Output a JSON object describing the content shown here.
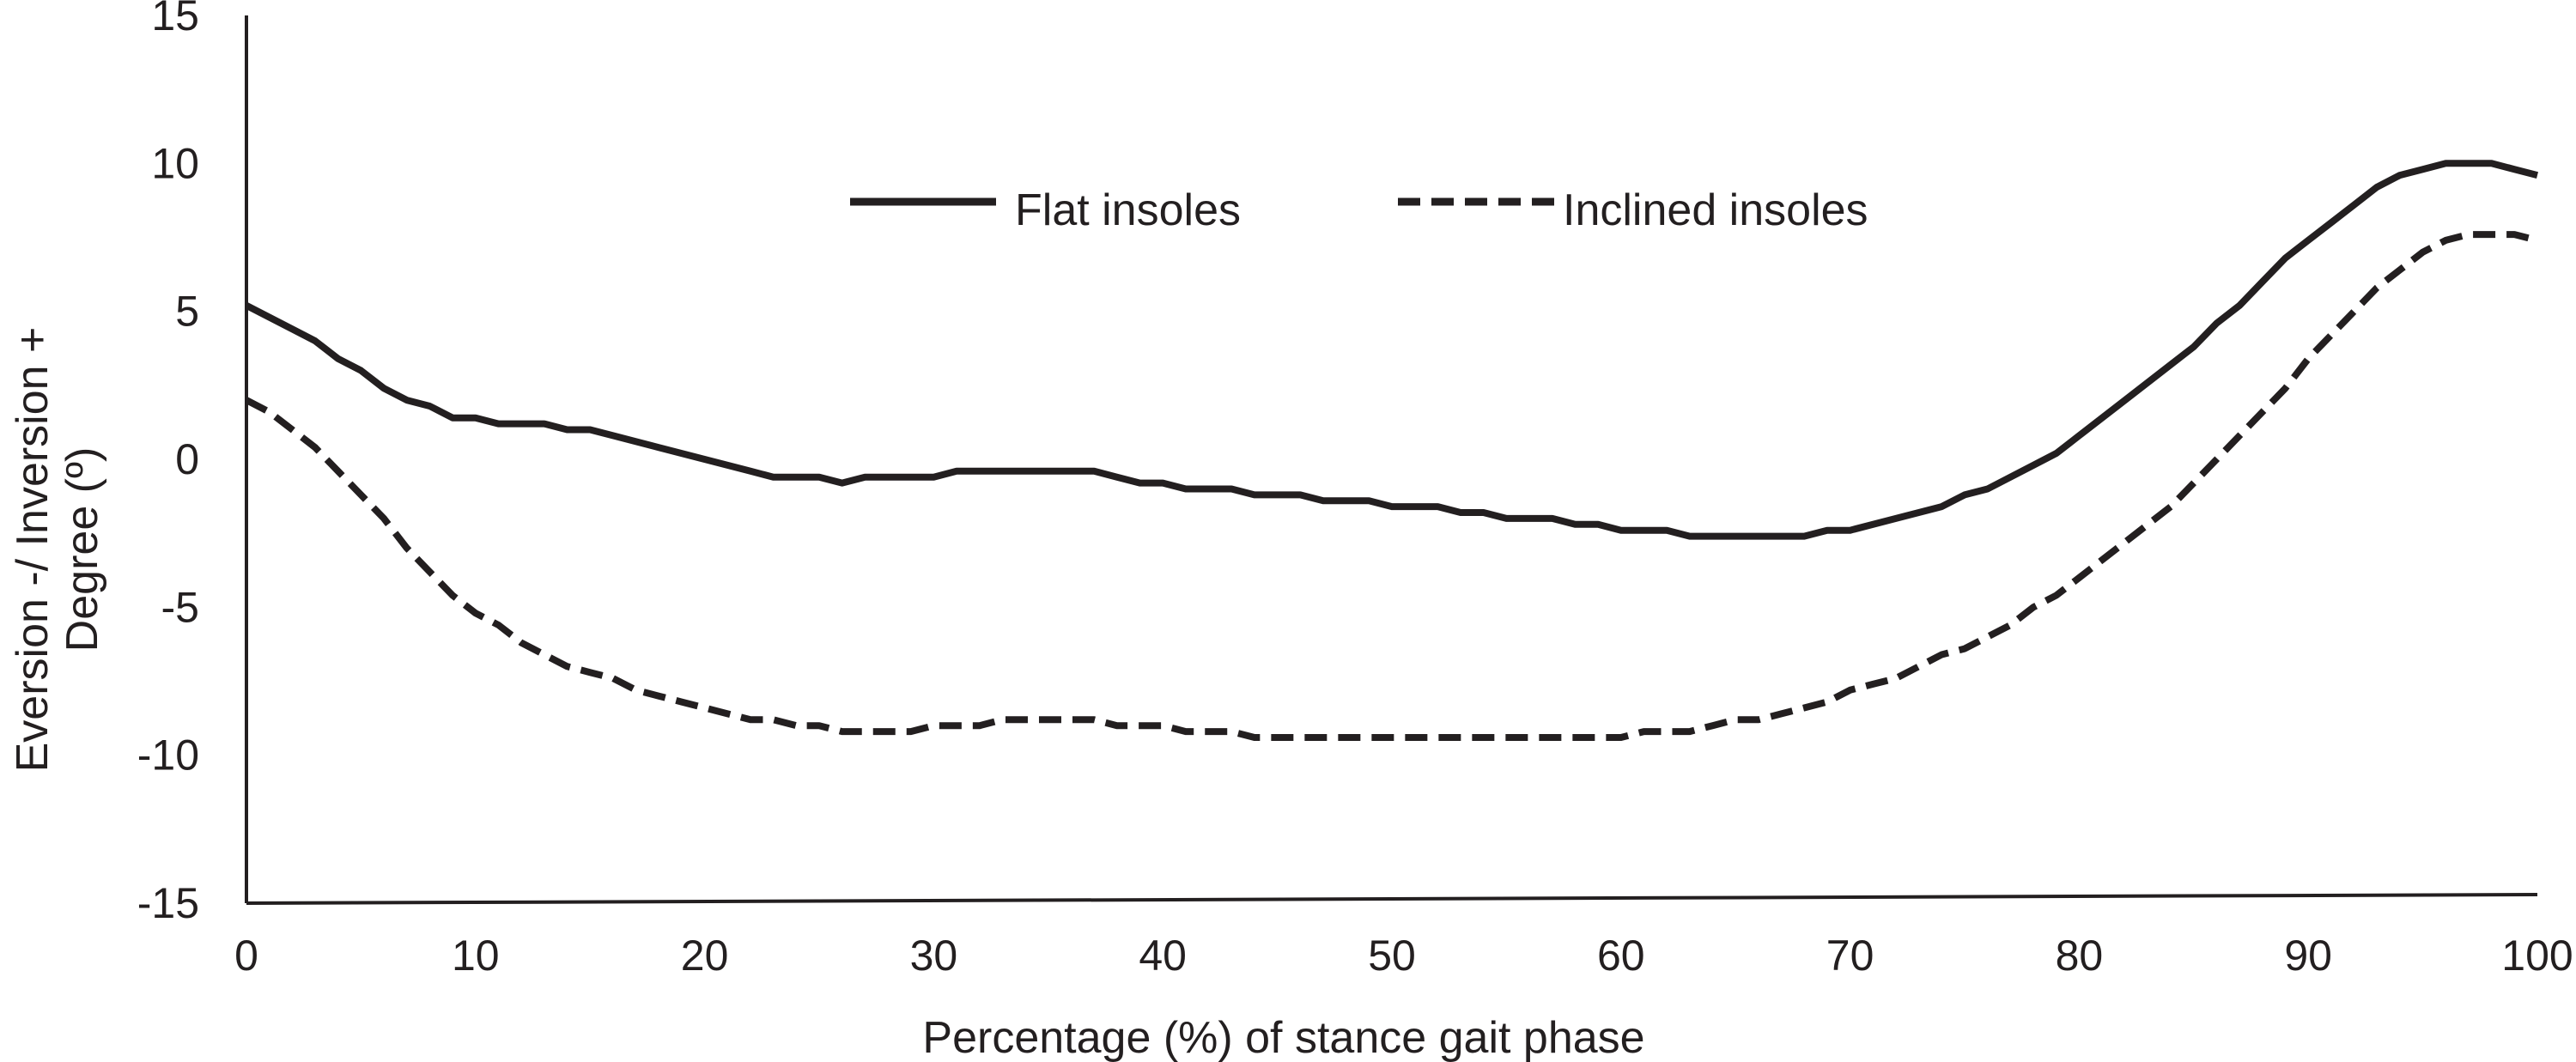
{
  "chart_data": {
    "type": "line",
    "title": "",
    "xlabel": "Percentage (%) of stance gait phase",
    "ylabel_line1": "Eversion -/ Inversion +",
    "ylabel_line2": "Degree (º)",
    "xlim": [
      0,
      100
    ],
    "ylim": [
      -15,
      15
    ],
    "xticks": [
      0,
      10,
      20,
      30,
      40,
      50,
      60,
      70,
      80,
      90,
      100
    ],
    "yticks": [
      -15,
      -10,
      -5,
      0,
      5,
      10,
      15
    ],
    "xtick_labels": [
      "0",
      "10",
      "20",
      "30",
      "40",
      "50",
      "60",
      "70",
      "80",
      "90",
      "100"
    ],
    "ytick_labels": [
      "-15",
      "-10",
      "-5",
      "0",
      "5",
      "10",
      "15"
    ],
    "grid": false,
    "legend_position": "top",
    "line_color": "#231f20",
    "series": [
      {
        "name": "Flat insoles",
        "style": "solid",
        "x": [
          0,
          1,
          2,
          3,
          4,
          5,
          6,
          7,
          8,
          9,
          10,
          11,
          12,
          13,
          14,
          15,
          16,
          18,
          20,
          22,
          23,
          24,
          25,
          26,
          27,
          28,
          30,
          31,
          33,
          35,
          37,
          38,
          39,
          40,
          41,
          42,
          43,
          44,
          45,
          46,
          47,
          48,
          49,
          50,
          51,
          52,
          53,
          54,
          55,
          56,
          57,
          58,
          59,
          60,
          61,
          62,
          63,
          64,
          65,
          66,
          67,
          68,
          69,
          70,
          72,
          74,
          75,
          76,
          78,
          79,
          80,
          82,
          84,
          85,
          86,
          87,
          88,
          89,
          90,
          91,
          92,
          93,
          94,
          95,
          96,
          97,
          98,
          99,
          100
        ],
        "y": [
          5.2,
          4.8,
          4.4,
          4.0,
          3.4,
          3.0,
          2.4,
          2.0,
          1.8,
          1.4,
          1.4,
          1.2,
          1.2,
          1.2,
          1.0,
          1.0,
          0.8,
          0.4,
          0.0,
          -0.4,
          -0.6,
          -0.6,
          -0.6,
          -0.8,
          -0.6,
          -0.6,
          -0.6,
          -0.4,
          -0.4,
          -0.4,
          -0.4,
          -0.6,
          -0.8,
          -0.8,
          -1.0,
          -1.0,
          -1.0,
          -1.2,
          -1.2,
          -1.2,
          -1.4,
          -1.4,
          -1.4,
          -1.6,
          -1.6,
          -1.6,
          -1.8,
          -1.8,
          -2.0,
          -2.0,
          -2.0,
          -2.2,
          -2.2,
          -2.4,
          -2.4,
          -2.4,
          -2.6,
          -2.6,
          -2.6,
          -2.6,
          -2.6,
          -2.6,
          -2.4,
          -2.4,
          -2.0,
          -1.6,
          -1.2,
          -1.0,
          -0.2,
          0.2,
          0.8,
          2.0,
          3.2,
          3.8,
          4.6,
          5.2,
          6.0,
          6.8,
          7.4,
          8.0,
          8.6,
          9.2,
          9.6,
          9.8,
          10.0,
          10.0,
          10.0,
          9.8,
          9.6
        ]
      },
      {
        "name": "Inclined insoles",
        "style": "dashed",
        "x": [
          0,
          1,
          2,
          3,
          4,
          5,
          6,
          7,
          8,
          9,
          10,
          11,
          12,
          13,
          14,
          15,
          16,
          17,
          18,
          19,
          20,
          21,
          22,
          23,
          24,
          25,
          26,
          27,
          28,
          29,
          30,
          31,
          32,
          33,
          34,
          35,
          36,
          37,
          38,
          39,
          40,
          41,
          42,
          43,
          44,
          45,
          50,
          55,
          60,
          61,
          62,
          63,
          64,
          65,
          66,
          67,
          68,
          69,
          70,
          71,
          72,
          73,
          74,
          75,
          76,
          77,
          78,
          79,
          80,
          81,
          82,
          83,
          84,
          85,
          86,
          87,
          88,
          89,
          90,
          91,
          92,
          93,
          94,
          95,
          96,
          97,
          98,
          99,
          100
        ],
        "y": [
          2.0,
          1.6,
          1.0,
          0.4,
          -0.4,
          -1.2,
          -2.0,
          -3.0,
          -3.8,
          -4.6,
          -5.2,
          -5.6,
          -6.2,
          -6.6,
          -7.0,
          -7.2,
          -7.4,
          -7.8,
          -8.0,
          -8.2,
          -8.4,
          -8.6,
          -8.8,
          -8.8,
          -9.0,
          -9.0,
          -9.2,
          -9.2,
          -9.2,
          -9.2,
          -9.0,
          -9.0,
          -9.0,
          -8.8,
          -8.8,
          -8.8,
          -8.8,
          -8.8,
          -9.0,
          -9.0,
          -9.0,
          -9.2,
          -9.2,
          -9.2,
          -9.4,
          -9.4,
          -9.4,
          -9.4,
          -9.4,
          -9.2,
          -9.2,
          -9.2,
          -9.0,
          -8.8,
          -8.8,
          -8.6,
          -8.4,
          -8.2,
          -7.8,
          -7.6,
          -7.4,
          -7.0,
          -6.6,
          -6.4,
          -6.0,
          -5.6,
          -5.0,
          -4.6,
          -4.0,
          -3.4,
          -2.8,
          -2.2,
          -1.6,
          -0.8,
          0.0,
          0.8,
          1.6,
          2.4,
          3.4,
          4.2,
          5.0,
          5.8,
          6.4,
          7.0,
          7.4,
          7.6,
          7.6,
          7.6,
          7.4
        ]
      }
    ]
  }
}
